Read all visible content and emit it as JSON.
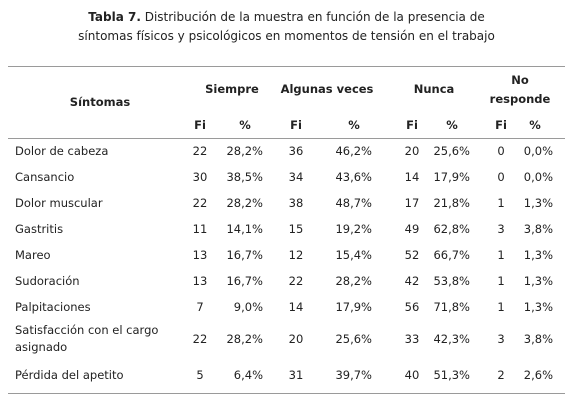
{
  "caption": {
    "label": "Tabla 7.",
    "lines": [
      "Distribución de la muestra en función de la presencia de",
      "síntomas físicos y psicológicos en momentos de tensión en el trabajo"
    ]
  },
  "table": {
    "first_header": "Síntomas",
    "groups": [
      [
        "Siempre"
      ],
      [
        "Algunas veces"
      ],
      [
        "Nunca"
      ],
      [
        "No",
        "responde"
      ]
    ],
    "subheaders": [
      "Fi",
      "%",
      "Fi",
      "%",
      "Fi",
      "%",
      "Fi",
      "%"
    ],
    "rows": [
      [
        [
          "Dolor de cabeza"
        ],
        "22",
        "28,2%",
        "36",
        "46,2%",
        "20",
        "25,6%",
        "0",
        "0,0%"
      ],
      [
        [
          "Cansancio"
        ],
        "30",
        "38,5%",
        "34",
        "43,6%",
        "14",
        "17,9%",
        "0",
        "0,0%"
      ],
      [
        [
          "Dolor muscular"
        ],
        "22",
        "28,2%",
        "38",
        "48,7%",
        "17",
        "21,8%",
        "1",
        "1,3%"
      ],
      [
        [
          "Gastritis"
        ],
        "11",
        "14,1%",
        "15",
        "19,2%",
        "49",
        "62,8%",
        "3",
        "3,8%"
      ],
      [
        [
          "Mareo"
        ],
        "13",
        "16,7%",
        "12",
        "15,4%",
        "52",
        "66,7%",
        "1",
        "1,3%"
      ],
      [
        [
          "Sudoración"
        ],
        "13",
        "16,7%",
        "22",
        "28,2%",
        "42",
        "53,8%",
        "1",
        "1,3%"
      ],
      [
        [
          "Palpitaciones"
        ],
        "7",
        "9,0%",
        "14",
        "17,9%",
        "56",
        "71,8%",
        "1",
        "1,3%"
      ],
      [
        [
          "Satisfacción con el cargo",
          "asignado"
        ],
        "22",
        "28,2%",
        "20",
        "25,6%",
        "33",
        "42,3%",
        "3",
        "3,8%"
      ],
      [
        [
          "Pérdida del apetito"
        ],
        "5",
        "6,4%",
        "31",
        "39,7%",
        "40",
        "51,3%",
        "2",
        "2,6%"
      ]
    ]
  }
}
